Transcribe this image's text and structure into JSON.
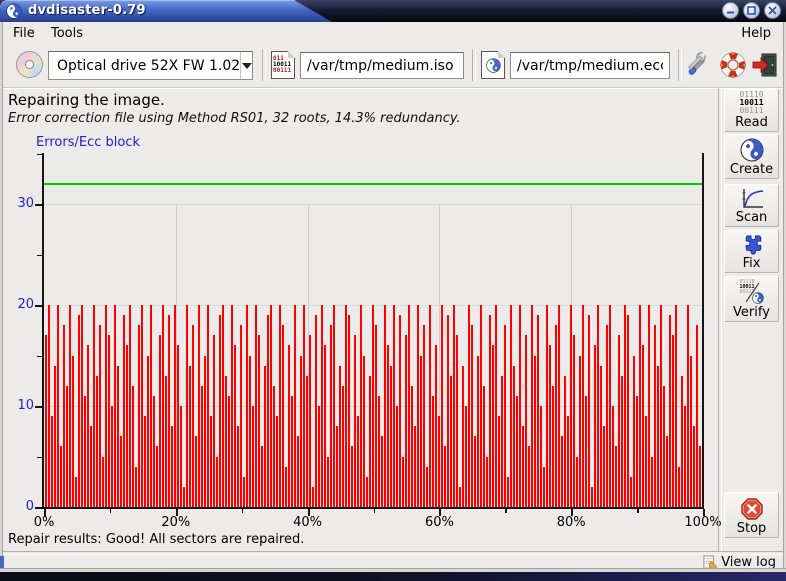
{
  "window": {
    "title": "dvdisaster-0.79"
  },
  "menu": {
    "items": [
      "File",
      "Tools"
    ],
    "help": "Help"
  },
  "toolbar": {
    "drive_selector": {
      "value": "Optical drive 52X FW 1.02"
    },
    "iso_field": {
      "value": "/var/tmp/medium.iso"
    },
    "ecc_field": {
      "value": "/var/tmp/medium.ecc"
    },
    "iso_icon_lines": [
      "011",
      "10011",
      "00111"
    ]
  },
  "status": {
    "line1": "Repairing the image.",
    "line2": "Error correction file using Method RS01, 32 roots, 14.3% redundancy."
  },
  "chart_data": {
    "type": "bar",
    "title": "Errors/Ecc block",
    "ylim": [
      0,
      35
    ],
    "yticks": [
      0,
      10,
      20,
      30
    ],
    "yticks_minor": [
      5,
      15,
      25,
      35
    ],
    "xticks": [
      "0%",
      "20%",
      "40%",
      "60%",
      "80%",
      "100%"
    ],
    "xticks_minor": [
      "10%",
      "30%",
      "50%",
      "70%",
      "90%"
    ],
    "grid": true,
    "bar_color": "#ff0000",
    "threshold_line": {
      "value": 32,
      "color": "#00cc00"
    },
    "cursor_position_pct": 100,
    "max_bar_value": 20,
    "bars": [
      17,
      20,
      9,
      14,
      20,
      6,
      18,
      12,
      20,
      15,
      3,
      19,
      20,
      11,
      16,
      8,
      20,
      13,
      18,
      5,
      20,
      17,
      10,
      20,
      14,
      7,
      19,
      16,
      20,
      12,
      4,
      18,
      20,
      9,
      15,
      20,
      11,
      6,
      17,
      20,
      13,
      19,
      8,
      20,
      16,
      10,
      2,
      20,
      14,
      18,
      7,
      20,
      12,
      15,
      20,
      9,
      17,
      5,
      19,
      20,
      13,
      11,
      20,
      16,
      8,
      18,
      3,
      20,
      15,
      10,
      20,
      17,
      6,
      14,
      19,
      20,
      12,
      9,
      20,
      18,
      4,
      16,
      11,
      20,
      7,
      15,
      20,
      13,
      17,
      2,
      19,
      10,
      20,
      16,
      5,
      18,
      20,
      8,
      14,
      12,
      20,
      19,
      6,
      17,
      9,
      20,
      15,
      3,
      13,
      20,
      18,
      11,
      7,
      20,
      16,
      14,
      20,
      10,
      19,
      5,
      17,
      20,
      12,
      8,
      20,
      15,
      18,
      4,
      20,
      11,
      16,
      9,
      20,
      6,
      19,
      13,
      20,
      17,
      2,
      14,
      10,
      20,
      18,
      7,
      15,
      20,
      12,
      5,
      19,
      16,
      20,
      9,
      13,
      18,
      3,
      20,
      14,
      11,
      20,
      8,
      17,
      6,
      20,
      15,
      19,
      10,
      4,
      20,
      16,
      12,
      18,
      20,
      7,
      13,
      9,
      20,
      17,
      5,
      15,
      20,
      11,
      19,
      2,
      16,
      20,
      14,
      8,
      18,
      20,
      10,
      6,
      17,
      13,
      20,
      19,
      3,
      15,
      11,
      20,
      16,
      9,
      20,
      5,
      18,
      14,
      20,
      12,
      7,
      19,
      17,
      20,
      4,
      13,
      10,
      20,
      15,
      8,
      18,
      6,
      20
    ]
  },
  "sidebar": {
    "buttons": [
      {
        "label": "Read"
      },
      {
        "label": "Create"
      },
      {
        "label": "Scan"
      },
      {
        "label": "Fix"
      },
      {
        "label": "Verify"
      }
    ],
    "stop_label": "Stop",
    "read_icon_lines": [
      "01110",
      "10011",
      "00111"
    ],
    "verify_icon_lines": [
      "01110",
      "10011",
      "00111"
    ]
  },
  "footer": {
    "result": "Repair results: Good! All sectors are repaired.",
    "view_log": "View log"
  },
  "colors": {
    "accent_blue": "#2222cc",
    "bar_red": "#ff0000",
    "threshold_green": "#00cc00",
    "titlebar_blue": "#4468c4",
    "stop_red": "#d93526"
  }
}
